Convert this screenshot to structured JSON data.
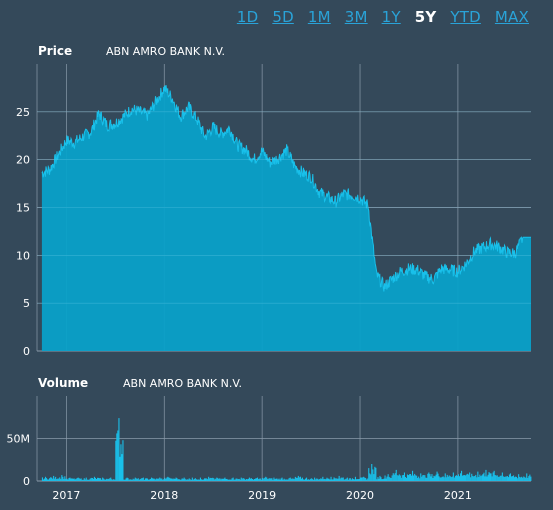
{
  "range_selector": {
    "options": [
      "1D",
      "5D",
      "1M",
      "3M",
      "1Y",
      "5Y",
      "YTD",
      "MAX"
    ],
    "active": "5Y"
  },
  "colors": {
    "background": "#34495a",
    "fill": "#0aa1c9",
    "line": "#19c0ea",
    "grid": "#8a9bab",
    "text": "#ffffff",
    "link": "#2aa3d8"
  },
  "chart_data": [
    {
      "type": "area",
      "title": "Price",
      "subtitle": "ABN AMRO BANK N.V.",
      "ylim": [
        0,
        30
      ],
      "yticks": [
        0,
        5,
        10,
        15,
        20,
        25
      ],
      "grid": true,
      "x": [
        "2016-10",
        "2016-11",
        "2016-12",
        "2017-01",
        "2017-02",
        "2017-03",
        "2017-04",
        "2017-05",
        "2017-06",
        "2017-07",
        "2017-08",
        "2017-09",
        "2017-10",
        "2017-11",
        "2017-12",
        "2018-01",
        "2018-02",
        "2018-03",
        "2018-04",
        "2018-05",
        "2018-06",
        "2018-07",
        "2018-08",
        "2018-09",
        "2018-10",
        "2018-11",
        "2018-12",
        "2019-01",
        "2019-02",
        "2019-03",
        "2019-04",
        "2019-05",
        "2019-06",
        "2019-07",
        "2019-08",
        "2019-09",
        "2019-10",
        "2019-11",
        "2019-12",
        "2020-01",
        "2020-02",
        "2020-03",
        "2020-04",
        "2020-05",
        "2020-06",
        "2020-07",
        "2020-08",
        "2020-09",
        "2020-10",
        "2020-11",
        "2020-12",
        "2021-01",
        "2021-02",
        "2021-03",
        "2021-04",
        "2021-05",
        "2021-06",
        "2021-07",
        "2021-08",
        "2021-09"
      ],
      "values": [
        18.6,
        19.0,
        20.5,
        22.0,
        21.8,
        22.4,
        22.9,
        24.8,
        23.6,
        23.8,
        24.5,
        25.3,
        25.0,
        24.6,
        26.1,
        27.5,
        26.4,
        24.5,
        25.5,
        24.2,
        22.4,
        23.4,
        22.7,
        23.3,
        21.5,
        21.0,
        20.0,
        20.9,
        19.7,
        20.2,
        21.0,
        19.3,
        18.6,
        18.2,
        16.6,
        16.1,
        15.6,
        16.4,
        16.3,
        16.0,
        15.2,
        8.0,
        6.7,
        7.6,
        8.3,
        8.6,
        8.5,
        7.8,
        7.5,
        8.6,
        8.5,
        8.3,
        9.1,
        10.4,
        10.8,
        11.2,
        10.9,
        10.3,
        10.2,
        11.9
      ],
      "xticks": [
        {
          "label": "2017",
          "at": "2017-01"
        },
        {
          "label": "2018",
          "at": "2018-01"
        },
        {
          "label": "2019",
          "at": "2019-01"
        },
        {
          "label": "2020",
          "at": "2020-01"
        },
        {
          "label": "2021",
          "at": "2021-01"
        }
      ]
    },
    {
      "type": "bar",
      "title": "Volume",
      "subtitle": "ABN AMRO BANK N.V.",
      "ylim": [
        0,
        100
      ],
      "yticks": [
        {
          "value": 0,
          "label": "0"
        },
        {
          "value": 50,
          "label": "50M"
        }
      ],
      "unit": "M",
      "grid": true,
      "x": [
        "2016-10",
        "2016-11",
        "2016-12",
        "2017-01",
        "2017-02",
        "2017-03",
        "2017-04",
        "2017-05",
        "2017-06",
        "2017-07",
        "2017-08",
        "2017-09",
        "2017-10",
        "2017-11",
        "2017-12",
        "2018-01",
        "2018-02",
        "2018-03",
        "2018-04",
        "2018-05",
        "2018-06",
        "2018-07",
        "2018-08",
        "2018-09",
        "2018-10",
        "2018-11",
        "2018-12",
        "2019-01",
        "2019-02",
        "2019-03",
        "2019-04",
        "2019-05",
        "2019-06",
        "2019-07",
        "2019-08",
        "2019-09",
        "2019-10",
        "2019-11",
        "2019-12",
        "2020-01",
        "2020-02",
        "2020-03",
        "2020-04",
        "2020-05",
        "2020-06",
        "2020-07",
        "2020-08",
        "2020-09",
        "2020-10",
        "2020-11",
        "2020-12",
        "2021-01",
        "2021-02",
        "2021-03",
        "2021-04",
        "2021-05",
        "2021-06",
        "2021-07",
        "2021-08",
        "2021-09"
      ],
      "values": [
        5,
        6,
        7,
        4,
        4,
        4,
        5,
        4,
        4,
        74,
        4,
        4,
        4,
        4,
        4,
        5,
        4,
        4,
        4,
        4,
        5,
        4,
        4,
        4,
        4,
        4,
        4,
        5,
        4,
        4,
        4,
        6,
        4,
        4,
        5,
        5,
        6,
        4,
        5,
        5,
        20,
        6,
        8,
        13,
        10,
        12,
        9,
        10,
        11,
        9,
        10,
        12,
        10,
        11,
        13,
        12,
        10,
        9,
        8,
        9
      ],
      "xticks": [
        {
          "label": "2017",
          "at": "2017-01"
        },
        {
          "label": "2018",
          "at": "2018-01"
        },
        {
          "label": "2019",
          "at": "2019-01"
        },
        {
          "label": "2020",
          "at": "2020-01"
        },
        {
          "label": "2021",
          "at": "2021-01"
        }
      ]
    }
  ]
}
